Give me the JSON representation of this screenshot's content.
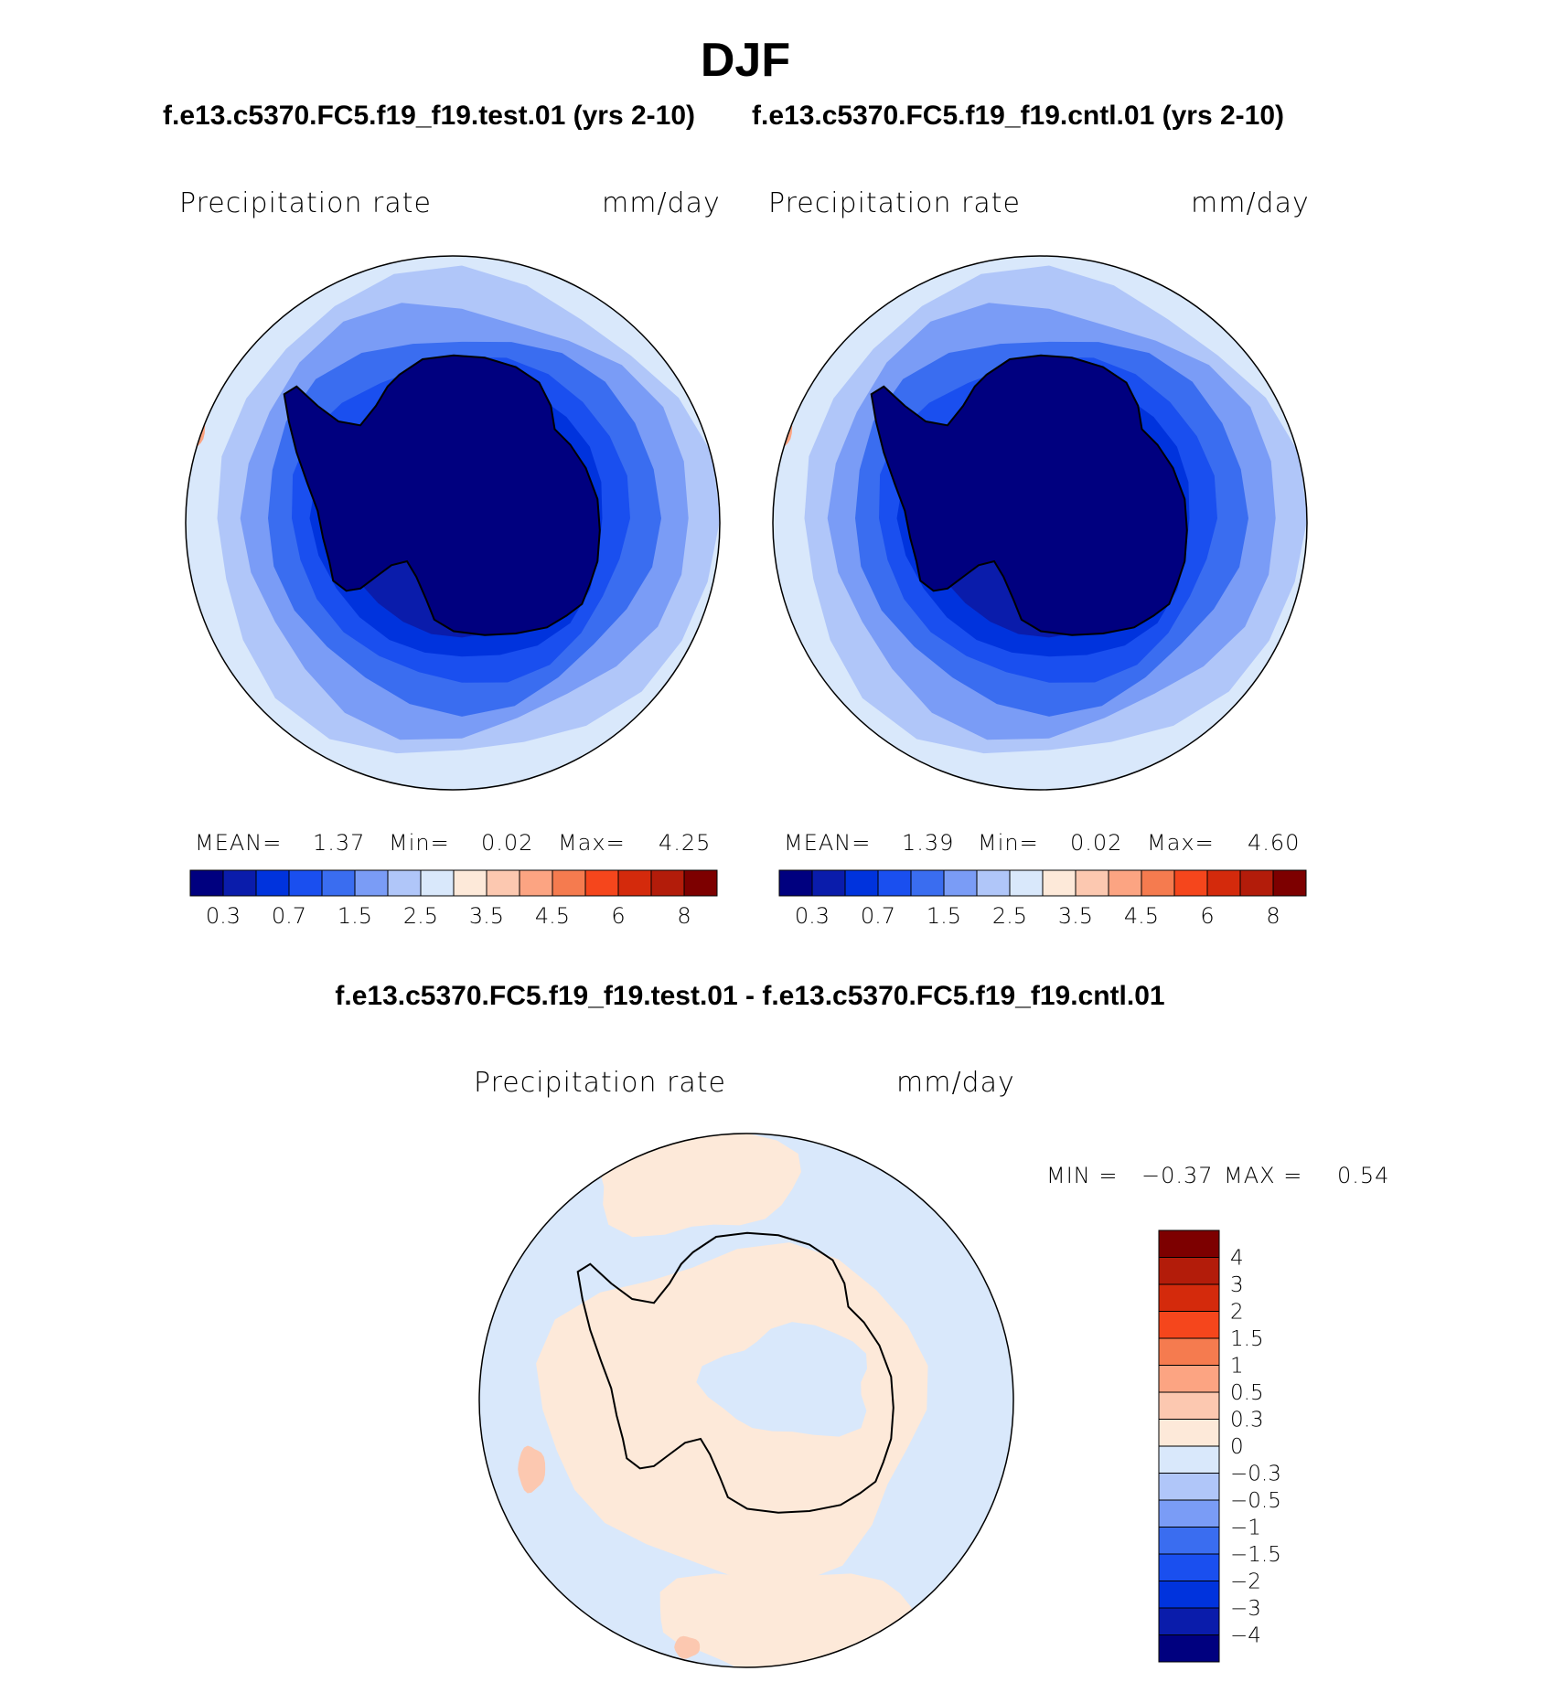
{
  "page": {
    "main_title": "DJF",
    "subtitle_test": "f.e13.c5370.FC5.f19_f19.test.01 (yrs 2-10)",
    "subtitle_cntl": "f.e13.c5370.FC5.f19_f19.cntl.01 (yrs 2-10)",
    "diff_title": "f.e13.c5370.FC5.f19_f19.test.01 - f.e13.c5370.FC5.f19_f19.cntl.01"
  },
  "colors": {
    "abs_scale": [
      "#00007f",
      "#0a1cab",
      "#0033dd",
      "#1a4fef",
      "#3a6df0",
      "#7a9cf6",
      "#b0c6f9",
      "#d9e8fb",
      "#fde9d9",
      "#fcc8b0",
      "#fca482",
      "#f57b4f",
      "#f5461c",
      "#d42a0c",
      "#b31c0a",
      "#7d0000"
    ],
    "diff_scale": [
      "#00007f",
      "#0a1cab",
      "#0033dd",
      "#1a4fef",
      "#3a6df0",
      "#7a9cf6",
      "#b0c6f9",
      "#d9e8fb",
      "#fde9d9",
      "#fcc8b0",
      "#fca482",
      "#f57b4f",
      "#f5461c",
      "#d42a0c",
      "#b31c0a",
      "#7d0000"
    ]
  },
  "chart_data": [
    {
      "type": "heatmap",
      "id": "test",
      "title": "f.e13.c5370.FC5.f19_f19.test.01 (yrs 2-10)",
      "variable": "Precipitation rate",
      "units": "mm/day",
      "stats": {
        "mean_label": "MEAN=",
        "mean": "1.37",
        "min_label": "Min=",
        "min": "0.02",
        "max_label": "Max=",
        "max": "4.25"
      },
      "colorbar_labels": [
        "0.3",
        "0.7",
        "1.5",
        "2.5",
        "3.5",
        "4.5",
        "6",
        "8"
      ],
      "projection": "south polar stereographic"
    },
    {
      "type": "heatmap",
      "id": "cntl",
      "title": "f.e13.c5370.FC5.f19_f19.cntl.01 (yrs 2-10)",
      "variable": "Precipitation rate",
      "units": "mm/day",
      "stats": {
        "mean_label": "MEAN=",
        "mean": "1.39",
        "min_label": "Min=",
        "min": "0.02",
        "max_label": "Max=",
        "max": "4.60"
      },
      "colorbar_labels": [
        "0.3",
        "0.7",
        "1.5",
        "2.5",
        "3.5",
        "4.5",
        "6",
        "8"
      ],
      "projection": "south polar stereographic"
    },
    {
      "type": "heatmap",
      "id": "diff",
      "title": "f.e13.c5370.FC5.f19_f19.test.01 - f.e13.c5370.FC5.f19_f19.cntl.01",
      "variable": "Precipitation rate",
      "units": "mm/day",
      "stats": {
        "min_label": "MIN =",
        "min": "−0.37",
        "max_label": "MAX =",
        "max": "0.54"
      },
      "colorbar_labels": [
        "4",
        "3",
        "2",
        "1.5",
        "1",
        "0.5",
        "0.3",
        "0",
        "−0.3",
        "−0.5",
        "−1",
        "−1.5",
        "−2",
        "−3",
        "−4"
      ],
      "projection": "south polar stereographic"
    }
  ]
}
